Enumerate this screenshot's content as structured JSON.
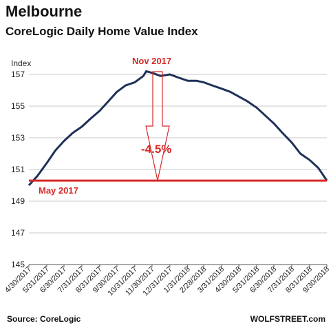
{
  "chart_data": {
    "type": "line",
    "title": "Melbourne",
    "subtitle": "CoreLogic Daily Home Value Index",
    "ylabel": "Index",
    "ylim": [
      145,
      157
    ],
    "yticks": [
      145,
      147,
      149,
      151,
      153,
      155,
      157
    ],
    "x_tick_labels": [
      "4/30/2017",
      "5/31/2017",
      "6/30/2017",
      "7/31/2017",
      "8/31/2017",
      "9/30/2017",
      "10/31/2017",
      "11/30/2017",
      "12/31/2017",
      "1/31/2018",
      "2/28/2018",
      "3/31/2018",
      "4/30/2018",
      "5/31/2018",
      "6/30/2018",
      "7/31/2018",
      "8/31/2018",
      "9/30/2018"
    ],
    "grid": "horizontal",
    "series": [
      {
        "color": "#1f3157",
        "x": [
          "4/30/2017",
          "5/15/2017",
          "5/31/2017",
          "6/15/2017",
          "6/30/2017",
          "7/15/2017",
          "7/31/2017",
          "8/15/2017",
          "8/31/2017",
          "9/15/2017",
          "9/30/2017",
          "10/15/2017",
          "10/31/2017",
          "11/15/2017",
          "11/20/2017",
          "11/30/2017",
          "12/15/2017",
          "12/31/2017",
          "1/15/2018",
          "1/31/2018",
          "2/15/2018",
          "2/28/2018",
          "3/15/2018",
          "3/31/2018",
          "4/15/2018",
          "4/30/2018",
          "5/15/2018",
          "5/31/2018",
          "6/15/2018",
          "6/30/2018",
          "7/15/2018",
          "7/31/2018",
          "8/15/2018",
          "8/31/2018",
          "9/15/2018",
          "9/30/2018"
        ],
        "values": [
          150.0,
          150.6,
          151.4,
          152.2,
          152.8,
          153.3,
          153.7,
          154.2,
          154.7,
          155.3,
          155.9,
          156.3,
          156.5,
          156.9,
          157.2,
          157.1,
          156.9,
          157.0,
          156.8,
          156.6,
          156.6,
          156.5,
          156.3,
          156.1,
          155.9,
          155.6,
          155.3,
          154.9,
          154.4,
          153.9,
          153.3,
          152.7,
          152.0,
          151.6,
          151.1,
          150.3
        ]
      }
    ],
    "reference_line": {
      "value": 150.3,
      "color": "#d62828",
      "label": "May 2017"
    },
    "annotations": [
      {
        "text": "Nov 2017",
        "color": "#d62828"
      },
      {
        "text": "-4.5%",
        "color": "#d62828"
      }
    ]
  },
  "source_label": "Source: CoreLogic",
  "brand_label": "WOLFSTREET.com"
}
